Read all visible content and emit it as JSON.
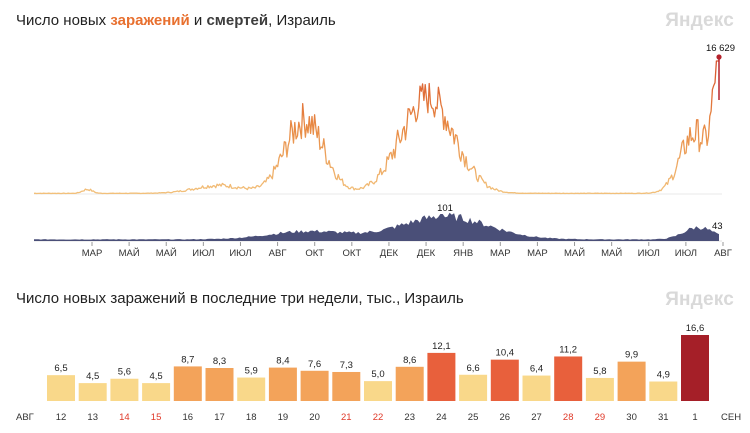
{
  "top_chart": {
    "title_prefix": "Число новых ",
    "title_infections": "заражений",
    "title_and": " и ",
    "title_deaths": "смертей",
    "title_suffix": ", Израиль",
    "logo": "Яндекс",
    "peak_infections_label": "16 629",
    "peak_deaths_label": "101",
    "last_deaths_label": "43",
    "month_ticks": [
      "МАР",
      "МАЙ",
      "МАЙ",
      "ИЮЛ",
      "ИЮЛ",
      "АВГ",
      "ОКТ",
      "ОКТ",
      "ДЕК",
      "ДЕК",
      "ЯНВ",
      "МАР",
      "МАР",
      "МАЙ",
      "МАЙ",
      "ИЮЛ",
      "ИЮЛ",
      "АВГ"
    ],
    "colors": {
      "infections_light": "#f0b86a",
      "infections_dark": "#e2733a",
      "peak_dot": "#b5222b",
      "deaths": "#4a4f78"
    }
  },
  "bottom_chart": {
    "title": "Число новых заражений в последние три недели, тыс., Израиль",
    "logo": "Яндекс",
    "left_label": "АВГ",
    "right_label": "СЕН",
    "colors": {
      "low": "#f9d88a",
      "mid": "#f3a35a",
      "high": "#e8603c",
      "max": "#a51f28",
      "weekend_label": "#e03a2a"
    }
  },
  "chart_data": [
    {
      "type": "area",
      "title": "Число новых заражений и смертей, Израиль",
      "series": [
        {
          "kind": "infections",
          "peak_value": 16629
        },
        {
          "kind": "deaths",
          "peak_value": 101,
          "last_value": 43
        }
      ],
      "x_tick_labels": [
        "МАР",
        "МАЙ",
        "МАЙ",
        "ИЮЛ",
        "ИЮЛ",
        "АВГ",
        "ОКТ",
        "ОКТ",
        "ДЕК",
        "ДЕК",
        "ЯНВ",
        "МАР",
        "МАР",
        "МАЙ",
        "МАЙ",
        "ИЮЛ",
        "ИЮЛ",
        "АВГ"
      ]
    },
    {
      "type": "bar",
      "title": "Число новых заражений в последние три недели, тыс., Израиль",
      "categories": [
        "12",
        "13",
        "14",
        "15",
        "16",
        "17",
        "18",
        "19",
        "20",
        "21",
        "22",
        "23",
        "24",
        "25",
        "26",
        "27",
        "28",
        "29",
        "30",
        "31",
        "1"
      ],
      "values": [
        6.5,
        4.5,
        5.6,
        4.5,
        8.7,
        8.3,
        5.9,
        8.4,
        7.6,
        7.3,
        5.0,
        8.6,
        12.1,
        6.6,
        10.4,
        6.4,
        11.2,
        5.8,
        9.9,
        4.9,
        16.6
      ],
      "value_labels": [
        "6,5",
        "4,5",
        "5,6",
        "4,5",
        "8,7",
        "8,3",
        "5,9",
        "8,4",
        "7,6",
        "7,3",
        "5,0",
        "8,6",
        "12,1",
        "6,6",
        "10,4",
        "6,4",
        "11,2",
        "5,8",
        "9,9",
        "4,9",
        "16,6"
      ],
      "weekend_categories": [
        "14",
        "15",
        "21",
        "22",
        "28",
        "29"
      ]
    }
  ]
}
